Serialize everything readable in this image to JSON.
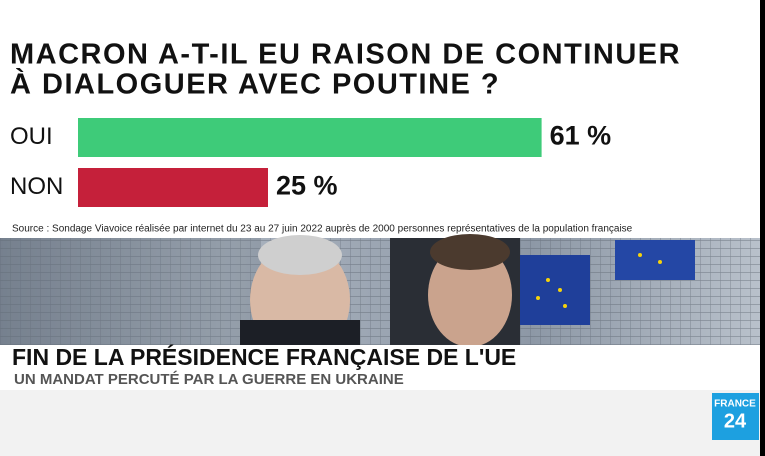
{
  "chart_data": {
    "type": "bar",
    "title": [
      "MACRON A-T-IL EU RAISON DE CONTINUER",
      "À DIALOGUER AVEC POUTINE ?"
    ],
    "categories": [
      "OUI",
      "NON"
    ],
    "values": [
      61,
      25
    ],
    "value_labels": [
      "61 %",
      "25 %"
    ],
    "colors": [
      "#3ecb79",
      "#c5203a"
    ],
    "source": "Source : Sondage Viavoice réalisée par internet du 23 au 27 juin 2022 auprès de 2000 personnes représentatives de la population française"
  },
  "banner": {
    "headline": "FIN DE LA PRÉSIDENCE FRANÇAISE DE L'UE",
    "subheadline": "UN MANDAT PERCUTÉ PAR LA GUERRE EN UKRAINE"
  },
  "logo": {
    "line1": "FRANCE",
    "line2": "24"
  }
}
